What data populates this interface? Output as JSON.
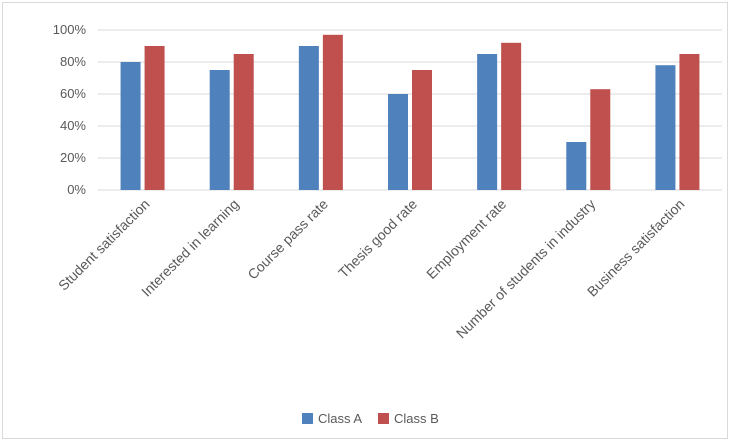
{
  "chart_data": {
    "type": "bar",
    "categories": [
      "Student satisfaction",
      "Interested in learning",
      "Course pass rate",
      "Thesis good rate",
      "Employment rate",
      "Number of students in industry",
      "Business satisfaction"
    ],
    "series": [
      {
        "name": "Class A",
        "color": "#4f81bd",
        "values": [
          80,
          75,
          90,
          60,
          85,
          30,
          78
        ]
      },
      {
        "name": "Class B",
        "color": "#c0504d",
        "values": [
          90,
          85,
          97,
          75,
          92,
          63,
          85
        ]
      }
    ],
    "y_ticks": [
      "0%",
      "20%",
      "40%",
      "60%",
      "80%",
      "100%"
    ],
    "ylim": [
      0,
      100
    ],
    "grid": true,
    "legend_position": "bottom"
  }
}
